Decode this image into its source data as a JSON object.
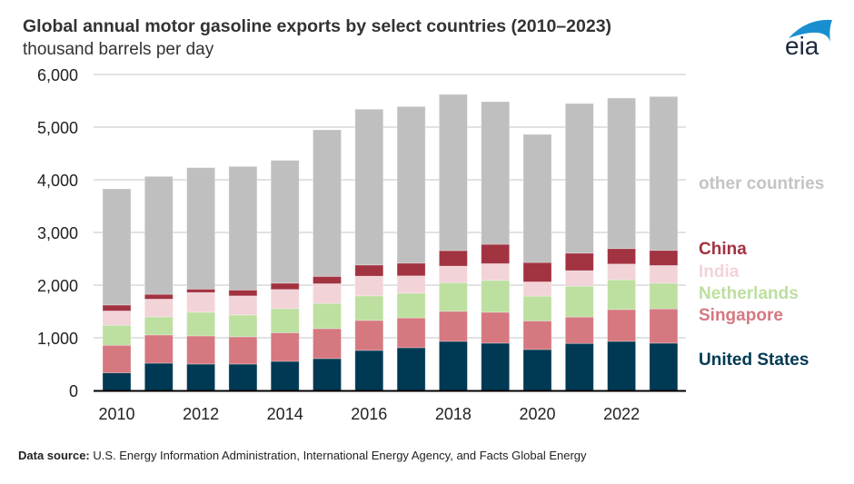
{
  "header": {
    "title": "Global annual motor gasoline exports by select countries (2010–2023)",
    "subtitle": "thousand barrels per day",
    "logo_text": "eia"
  },
  "footer": {
    "label": "Data source:",
    "text": " U.S. Energy Information Administration, International Energy Agency, and Facts Global Energy"
  },
  "chart_data": {
    "type": "bar",
    "stacked": true,
    "title": "Global annual motor gasoline exports by select countries (2010–2023)",
    "ylabel": "thousand barrels per day",
    "xlabel": "",
    "ylim": [
      0,
      6000
    ],
    "yticks": [
      0,
      1000,
      2000,
      3000,
      4000,
      5000,
      6000
    ],
    "ytick_labels": [
      "0",
      "1,000",
      "2,000",
      "3,000",
      "4,000",
      "5,000",
      "6,000"
    ],
    "categories": [
      "2010",
      "2011",
      "2012",
      "2013",
      "2014",
      "2015",
      "2016",
      "2017",
      "2018",
      "2019",
      "2020",
      "2021",
      "2022",
      "2023"
    ],
    "xtick_labels": [
      "2010",
      "2012",
      "2014",
      "2016",
      "2018",
      "2020",
      "2022"
    ],
    "grid": true,
    "legend_placement": "right, inline labels",
    "series": [
      {
        "name": "United States",
        "color": "#003953",
        "values": [
          335,
          518,
          501,
          501,
          553,
          605,
          760,
          812,
          933,
          898,
          777,
          893,
          933,
          898
        ]
      },
      {
        "name": "Singapore",
        "color": "#d57880",
        "values": [
          523,
          536,
          535,
          518,
          542,
          569,
          570,
          565,
          570,
          587,
          542,
          501,
          604,
          651
        ]
      },
      {
        "name": "Netherlands",
        "color": "#bddfa0",
        "values": [
          380,
          345,
          449,
          415,
          459,
          479,
          466,
          471,
          542,
          605,
          472,
          587,
          565,
          489
        ]
      },
      {
        "name": "India",
        "color": "#f2d3d8",
        "values": [
          272,
          335,
          375,
          362,
          363,
          374,
          375,
          328,
          316,
          318,
          271,
          294,
          299,
          335
        ]
      },
      {
        "name": "China",
        "color": "#a23341",
        "values": [
          113,
          92,
          64,
          111,
          121,
          139,
          212,
          242,
          294,
          367,
          368,
          333,
          293,
          287
        ]
      },
      {
        "name": "other countries",
        "color": "#bfbfbf",
        "values": [
          2205,
          2238,
          2307,
          2346,
          2331,
          2782,
          2957,
          2973,
          2966,
          2708,
          2432,
          2840,
          2858,
          2921
        ]
      }
    ],
    "legend": [
      {
        "label": "other countries",
        "color": "#c4c4c4"
      },
      {
        "label": "China",
        "color": "#a23341"
      },
      {
        "label": "India",
        "color": "#f2d3d8"
      },
      {
        "label": "Netherlands",
        "color": "#bddfa0"
      },
      {
        "label": "Singapore",
        "color": "#d57880"
      },
      {
        "label": "United States",
        "color": "#003953"
      }
    ]
  }
}
